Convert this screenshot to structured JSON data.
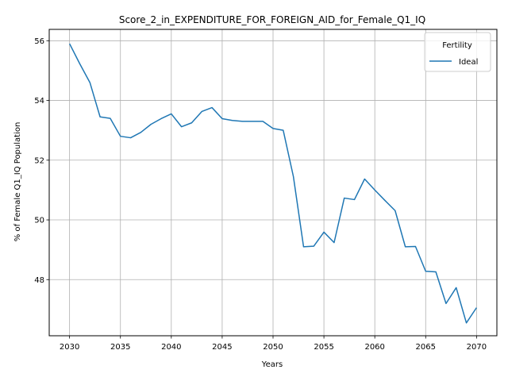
{
  "chart_data": {
    "type": "line",
    "title": "Score_2_in_EXPENDITURE_FOR_FOREIGN_AID_for_Female_Q1_IQ",
    "xlabel": "Years",
    "ylabel": "% of Female Q1_IQ Population",
    "xlim": [
      2028.0,
      2072.0
    ],
    "ylim": [
      46.12,
      56.38
    ],
    "xticks": [
      2030,
      2035,
      2040,
      2045,
      2050,
      2055,
      2060,
      2065,
      2070
    ],
    "yticks": [
      48,
      50,
      52,
      54,
      56
    ],
    "grid": true,
    "legend": {
      "title": "Fertility",
      "placement": "top-right"
    },
    "series": [
      {
        "name": "Ideal",
        "color": "#1f77b4",
        "x": [
          2030,
          2031,
          2032,
          2033,
          2034,
          2035,
          2036,
          2037,
          2038,
          2039,
          2040,
          2041,
          2042,
          2043,
          2044,
          2045,
          2046,
          2047,
          2048,
          2049,
          2050,
          2051,
          2052,
          2053,
          2054,
          2055,
          2056,
          2057,
          2058,
          2059,
          2060,
          2061,
          2062,
          2063,
          2064,
          2065,
          2066,
          2067,
          2068,
          2069,
          2070
        ],
        "values": [
          55.9,
          55.23,
          54.6,
          53.45,
          53.4,
          52.8,
          52.75,
          52.93,
          53.2,
          53.39,
          53.55,
          53.12,
          53.25,
          53.63,
          53.76,
          53.39,
          53.33,
          53.3,
          53.3,
          53.3,
          53.06,
          53.0,
          51.45,
          49.1,
          49.12,
          49.59,
          49.24,
          50.73,
          50.68,
          51.37,
          51.0,
          50.65,
          50.31,
          49.1,
          49.11,
          48.28,
          48.26,
          47.2,
          47.73,
          46.55,
          47.06
        ]
      }
    ]
  }
}
